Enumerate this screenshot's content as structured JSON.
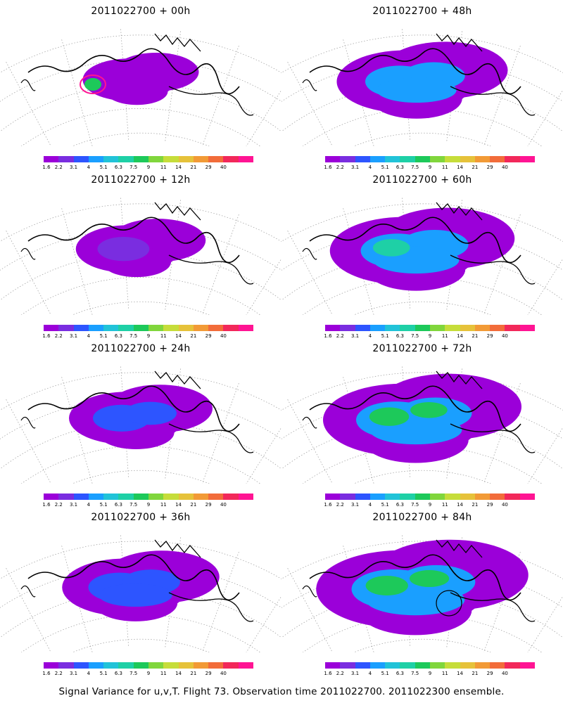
{
  "panels": [
    {
      "title": "2011022700 + 00h",
      "level": 0
    },
    {
      "title": "2011022700 + 48h",
      "level": 4
    },
    {
      "title": "2011022700 + 12h",
      "level": 1
    },
    {
      "title": "2011022700 + 60h",
      "level": 5
    },
    {
      "title": "2011022700 + 24h",
      "level": 2
    },
    {
      "title": "2011022700 + 72h",
      "level": 6
    },
    {
      "title": "2011022700 + 36h",
      "level": 3
    },
    {
      "title": "2011022700 + 84h",
      "level": 7
    }
  ],
  "colorbar": {
    "labels": [
      "1.6",
      "2.2",
      "3.1",
      "4",
      "5.1",
      "6.3",
      "7.5",
      "9",
      "11",
      "14",
      "21",
      "29",
      "40"
    ],
    "colors": [
      "#9b00d9",
      "#7a2de0",
      "#2d55ff",
      "#1a9fff",
      "#21c3d8",
      "#1ed0a6",
      "#1dc95a",
      "#80d63c",
      "#c6dd3a",
      "#e6c23a",
      "#f29a36",
      "#f26c3a",
      "#f2285a",
      "#ff1493"
    ]
  },
  "footer": "Signal Variance for u,v,T. Flight 73. Observation time 2011022700. 2011022300 ensemble."
}
